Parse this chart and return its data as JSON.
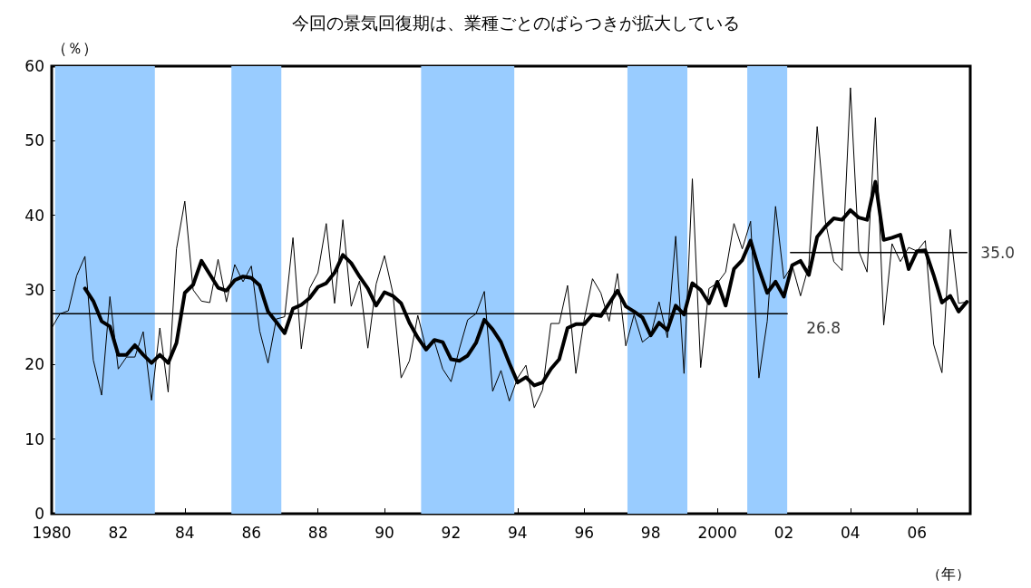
{
  "chart_data": {
    "type": "line",
    "title": "今回の景気回復期は、業種ごとのばらつきが拡大している",
    "ylabel": "（％）",
    "xlabel": "（年）",
    "xlim": [
      1980,
      2007.6
    ],
    "xticks": [
      {
        "value": 1980,
        "label": "1980"
      },
      {
        "value": 1982,
        "label": "82"
      },
      {
        "value": 1984,
        "label": "84"
      },
      {
        "value": 1986,
        "label": "86"
      },
      {
        "value": 1988,
        "label": "88"
      },
      {
        "value": 1990,
        "label": "90"
      },
      {
        "value": 1992,
        "label": "92"
      },
      {
        "value": 1994,
        "label": "94"
      },
      {
        "value": 1996,
        "label": "96"
      },
      {
        "value": 1998,
        "label": "98"
      },
      {
        "value": 2000,
        "label": "2000"
      },
      {
        "value": 2002,
        "label": "02"
      },
      {
        "value": 2004,
        "label": "04"
      },
      {
        "value": 2006,
        "label": "06"
      }
    ],
    "ylim": [
      0,
      60
    ],
    "yticks": [
      0,
      10,
      20,
      30,
      40,
      50,
      60
    ],
    "grid": false,
    "marker": "none",
    "series": [
      {
        "color": "#000000",
        "line_style": "solid",
        "x": [
          1980,
          1980.25,
          1980.5,
          1980.75,
          1981,
          1981.25,
          1981.5,
          1981.75,
          1982,
          1982.25,
          1982.5,
          1982.75,
          1983,
          1983.25,
          1983.5,
          1983.75,
          1984,
          1984.25,
          1984.5,
          1984.75,
          1985,
          1985.25,
          1985.5,
          1985.75,
          1986,
          1986.25,
          1986.5,
          1986.75,
          1987,
          1987.25,
          1987.5,
          1987.75,
          1988,
          1988.25,
          1988.5,
          1988.75,
          1989,
          1989.25,
          1989.5,
          1989.75,
          1990,
          1990.25,
          1990.5,
          1990.75,
          1991,
          1991.25,
          1991.5,
          1991.75,
          1992,
          1992.25,
          1992.5,
          1992.75,
          1993,
          1993.25,
          1993.5,
          1993.75,
          1994,
          1994.25,
          1994.5,
          1994.75,
          1995,
          1995.25,
          1995.5,
          1995.75,
          1996,
          1996.25,
          1996.5,
          1996.75,
          1997,
          1997.25,
          1997.5,
          1997.75,
          1998,
          1998.25,
          1998.5,
          1998.75,
          1999,
          1999.25,
          1999.5,
          1999.75,
          2000,
          2000.25,
          2000.5,
          2000.75,
          2001,
          2001.25,
          2001.5,
          2001.75,
          2002,
          2002.25,
          2002.5,
          2002.75,
          2003,
          2003.25,
          2003.5,
          2003.75,
          2004,
          2004.25,
          2004.5,
          2004.75,
          2005,
          2005.25,
          2005.5,
          2005.75,
          2006,
          2006.25,
          2006.5,
          2006.75,
          2007,
          2007.25,
          2007.5
        ],
        "values": [
          24.9,
          26.8,
          27.2,
          31.9,
          34.5,
          20.6,
          15.9,
          29.1,
          19.4,
          21.0,
          21.0,
          24.4,
          15.2,
          24.9,
          16.3,
          35.5,
          41.9,
          30.0,
          28.5,
          28.3,
          34.1,
          28.4,
          33.4,
          31.1,
          33.2,
          24.5,
          20.2,
          26.1,
          26.4,
          37.0,
          22.1,
          30.2,
          32.3,
          38.9,
          28.2,
          39.4,
          27.8,
          31.2,
          22.2,
          30.8,
          34.6,
          29.6,
          18.2,
          20.5,
          26.6,
          22.1,
          23.1,
          19.4,
          17.7,
          22.1,
          26.0,
          26.8,
          29.8,
          16.4,
          19.2,
          15.1,
          18.2,
          19.9,
          14.2,
          16.6,
          25.5,
          25.5,
          30.6,
          18.8,
          26.0,
          31.5,
          29.6,
          25.8,
          32.2,
          22.5,
          26.7,
          23.0,
          23.9,
          28.4,
          23.6,
          37.2,
          18.8,
          44.9,
          19.6,
          30.2,
          30.9,
          32.4,
          38.9,
          35.5,
          39.2,
          18.2,
          25.8,
          41.2,
          31.5,
          33.3,
          29.2,
          33.3,
          51.9,
          39.1,
          33.8,
          32.6,
          57.1,
          35.2,
          32.4,
          53.1,
          25.3,
          36.2,
          33.8,
          35.7,
          35.2,
          36.6,
          22.7,
          18.9,
          38.1,
          28.2,
          28.4
        ]
      },
      {
        "color": "#000000",
        "line_style": "solid",
        "x": [
          1981,
          1981.25,
          1981.5,
          1981.75,
          1982,
          1982.25,
          1982.5,
          1982.75,
          1983,
          1983.25,
          1983.5,
          1983.75,
          1984,
          1984.25,
          1984.5,
          1984.75,
          1985,
          1985.25,
          1985.5,
          1985.75,
          1986,
          1986.25,
          1986.5,
          1986.75,
          1987,
          1987.25,
          1987.5,
          1987.75,
          1988,
          1988.25,
          1988.5,
          1988.75,
          1989,
          1989.25,
          1989.5,
          1989.75,
          1990,
          1990.25,
          1990.5,
          1990.75,
          1991,
          1991.25,
          1991.5,
          1991.75,
          1992,
          1992.25,
          1992.5,
          1992.75,
          1993,
          1993.25,
          1993.5,
          1993.75,
          1994,
          1994.25,
          1994.5,
          1994.75,
          1995,
          1995.25,
          1995.5,
          1995.75,
          1996,
          1996.25,
          1996.5,
          1996.75,
          1997,
          1997.25,
          1997.5,
          1997.75,
          1998,
          1998.25,
          1998.5,
          1998.75,
          1999,
          1999.25,
          1999.5,
          1999.75,
          2000,
          2000.25,
          2000.5,
          2000.75,
          2001,
          2001.25,
          2001.5,
          2001.75,
          2002,
          2002.25,
          2002.5,
          2002.75,
          2003,
          2003.25,
          2003.5,
          2003.75,
          2004,
          2004.25,
          2004.5,
          2004.75,
          2005,
          2005.25,
          2005.5,
          2005.75,
          2006,
          2006.25,
          2006.5,
          2006.75,
          2007,
          2007.25,
          2007.5
        ],
        "values": [
          30.2,
          28.5,
          25.8,
          25.1,
          21.3,
          21.3,
          22.6,
          21.3,
          20.2,
          21.3,
          20.2,
          22.9,
          29.6,
          30.7,
          33.9,
          32.1,
          30.3,
          29.9,
          31.3,
          31.8,
          31.6,
          30.6,
          27.1,
          25.7,
          24.2,
          27.5,
          28.0,
          28.9,
          30.4,
          30.9,
          32.3,
          34.7,
          33.6,
          31.8,
          30.2,
          27.9,
          29.7,
          29.2,
          28.2,
          25.6,
          23.6,
          22.0,
          23.3,
          23.0,
          20.7,
          20.5,
          21.2,
          22.9,
          26.0,
          24.7,
          23.0,
          20.2,
          17.6,
          18.3,
          17.2,
          17.6,
          19.4,
          20.7,
          24.9,
          25.4,
          25.4,
          26.7,
          26.5,
          28.2,
          29.9,
          27.8,
          27.1,
          26.3,
          23.9,
          25.6,
          24.6,
          27.9,
          26.7,
          30.9,
          30.0,
          28.2,
          31.1,
          27.9,
          32.8,
          34.0,
          36.6,
          32.8,
          29.6,
          31.1,
          29.1,
          33.3,
          33.9,
          32.0,
          37.1,
          38.5,
          39.6,
          39.4,
          40.7,
          39.7,
          39.4,
          44.5,
          36.7,
          37.0,
          37.4,
          32.8,
          35.2,
          35.3,
          32.0,
          28.3,
          29.2,
          27.1,
          28.4
        ]
      },
      {
        "color": "#000000",
        "line_style": "solid",
        "x": [
          1980,
          2002.1
        ],
        "values": [
          26.8,
          26.8
        ]
      },
      {
        "color": "#000000",
        "line_style": "solid",
        "x": [
          2002.2,
          2007.5
        ],
        "values": [
          35.0,
          35.0
        ]
      }
    ],
    "bands": [
      {
        "axis": "x",
        "from": 1980.1,
        "to": 1983.1,
        "color": "#99ccff"
      },
      {
        "axis": "x",
        "from": 1985.4,
        "to": 1986.9,
        "color": "#99ccff"
      },
      {
        "axis": "x",
        "from": 1991.1,
        "to": 1993.9,
        "color": "#99ccff"
      },
      {
        "axis": "x",
        "from": 1997.3,
        "to": 1999.1,
        "color": "#99ccff"
      },
      {
        "axis": "x",
        "from": 2000.9,
        "to": 2002.1,
        "color": "#99ccff"
      }
    ],
    "annotations": [
      {
        "text": "26.8",
        "x": 2002.1,
        "y": 26.8
      },
      {
        "text": "35.0",
        "x": 2007.5,
        "y": 35.0
      }
    ]
  }
}
